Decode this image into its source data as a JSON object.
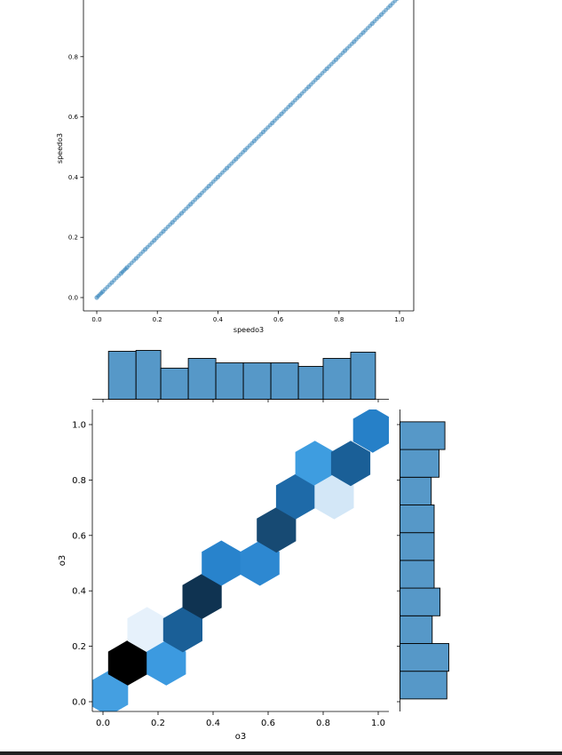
{
  "chart_data": [
    {
      "type": "scatter",
      "title": "",
      "xlabel": "speedo3",
      "ylabel": "speedo3",
      "xlim": [
        -0.04,
        1.04
      ],
      "ylim": [
        -0.03,
        1.0
      ],
      "xticks": [
        "0.0",
        "0.2",
        "0.4",
        "0.6",
        "0.8",
        "1.0"
      ],
      "yticks": [
        "0.0",
        "0.2",
        "0.4",
        "0.6",
        "0.8"
      ],
      "grid": false,
      "color": "#1f77b4",
      "points": [
        [
          0.0,
          0.0
        ],
        [
          0.02,
          0.02
        ],
        [
          0.05,
          0.05
        ],
        [
          0.08,
          0.08
        ],
        [
          0.1,
          0.1
        ],
        [
          0.13,
          0.13
        ],
        [
          0.16,
          0.16
        ],
        [
          0.19,
          0.19
        ],
        [
          0.22,
          0.22
        ],
        [
          0.25,
          0.25
        ],
        [
          0.28,
          0.28
        ],
        [
          0.31,
          0.31
        ],
        [
          0.34,
          0.34
        ],
        [
          0.37,
          0.37
        ],
        [
          0.4,
          0.4
        ],
        [
          0.43,
          0.43
        ],
        [
          0.46,
          0.46
        ],
        [
          0.49,
          0.49
        ],
        [
          0.52,
          0.52
        ],
        [
          0.55,
          0.55
        ],
        [
          0.58,
          0.58
        ],
        [
          0.61,
          0.61
        ],
        [
          0.64,
          0.64
        ],
        [
          0.67,
          0.67
        ],
        [
          0.7,
          0.7
        ],
        [
          0.73,
          0.73
        ],
        [
          0.76,
          0.76
        ],
        [
          0.79,
          0.79
        ],
        [
          0.82,
          0.82
        ],
        [
          0.85,
          0.85
        ],
        [
          0.88,
          0.88
        ],
        [
          0.91,
          0.91
        ],
        [
          0.94,
          0.94
        ],
        [
          0.97,
          0.97
        ],
        [
          1.0,
          1.0
        ]
      ]
    },
    {
      "type": "hexbin",
      "title": "",
      "xlabel": "o3",
      "ylabel": "o3",
      "xlim": [
        -0.04,
        1.04
      ],
      "ylim": [
        -0.03,
        1.05
      ],
      "xticks": [
        "0.0",
        "0.2",
        "0.4",
        "0.6",
        "0.8",
        "1.0"
      ],
      "yticks": [
        "0.0",
        "0.2",
        "0.4",
        "0.6",
        "0.8",
        "1.0"
      ],
      "hexbins": [
        {
          "x": 0.02,
          "y": 0.03,
          "color": "#449fe1"
        },
        {
          "x": 0.09,
          "y": 0.14,
          "color": "#000000"
        },
        {
          "x": 0.16,
          "y": 0.26,
          "color": "#e6f1fb"
        },
        {
          "x": 0.23,
          "y": 0.14,
          "color": "#3c9ae0"
        },
        {
          "x": 0.29,
          "y": 0.26,
          "color": "#1a5f97"
        },
        {
          "x": 0.36,
          "y": 0.38,
          "color": "#0f3351"
        },
        {
          "x": 0.43,
          "y": 0.5,
          "color": "#2883cc"
        },
        {
          "x": 0.57,
          "y": 0.5,
          "color": "#2d88d1"
        },
        {
          "x": 0.63,
          "y": 0.62,
          "color": "#174a73"
        },
        {
          "x": 0.7,
          "y": 0.74,
          "color": "#1e6aa8"
        },
        {
          "x": 0.77,
          "y": 0.86,
          "color": "#3e9de0"
        },
        {
          "x": 0.84,
          "y": 0.74,
          "color": "#d3e7f7"
        },
        {
          "x": 0.9,
          "y": 0.86,
          "color": "#1a5f97"
        },
        {
          "x": 0.98,
          "y": 0.98,
          "color": "#2680c8"
        }
      ],
      "marginal_x": {
        "bin_edges": [
          0.02,
          0.12,
          0.21,
          0.31,
          0.41,
          0.51,
          0.61,
          0.71,
          0.8,
          0.9,
          0.99
        ],
        "counts": [
          54,
          55,
          35,
          46,
          41,
          41,
          41,
          37,
          46,
          53
        ]
      },
      "marginal_y": {
        "bin_edges": [
          0.01,
          0.11,
          0.21,
          0.31,
          0.41,
          0.51,
          0.61,
          0.71,
          0.81,
          0.91,
          1.01
        ],
        "counts": [
          48,
          50,
          33,
          41,
          35,
          35,
          35,
          32,
          40,
          46
        ]
      },
      "hist_color": "#5698c8"
    }
  ]
}
